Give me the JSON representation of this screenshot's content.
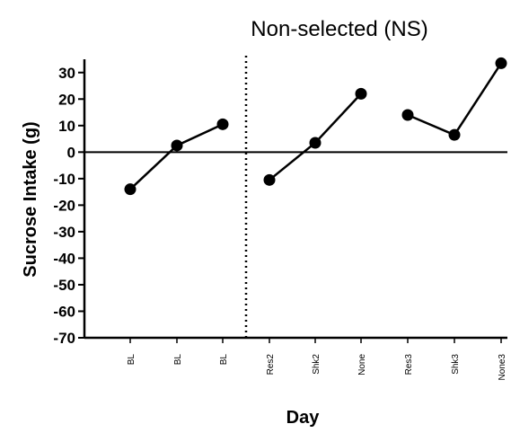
{
  "chart_data": {
    "type": "line",
    "title": "Non-selected (NS)",
    "xlabel": "Day",
    "ylabel": "Sucrose Intake  (g)",
    "ylim": [
      -70,
      35
    ],
    "yticks": [
      30,
      20,
      10,
      0,
      -10,
      -20,
      -30,
      -40,
      -50,
      -60,
      -70
    ],
    "categories": [
      "BL",
      "BL",
      "BL",
      "Res2",
      "Shk2",
      "None",
      "Res3",
      "Shk3",
      "None3"
    ],
    "segments": [
      {
        "indices": [
          0,
          1,
          2
        ],
        "values": [
          -14,
          2.5,
          10.5
        ]
      },
      {
        "indices": [
          3,
          4,
          5
        ],
        "values": [
          -10.5,
          3.5,
          22
        ]
      },
      {
        "indices": [
          6,
          7,
          8
        ],
        "values": [
          14,
          6.5,
          33.5
        ]
      }
    ],
    "reference_lines": {
      "horizontal_at": 0,
      "vertical_dotted_between": [
        "BL",
        "Res2"
      ]
    },
    "grid": false,
    "colors": {
      "line": "#000000",
      "marker": "#000000"
    }
  }
}
